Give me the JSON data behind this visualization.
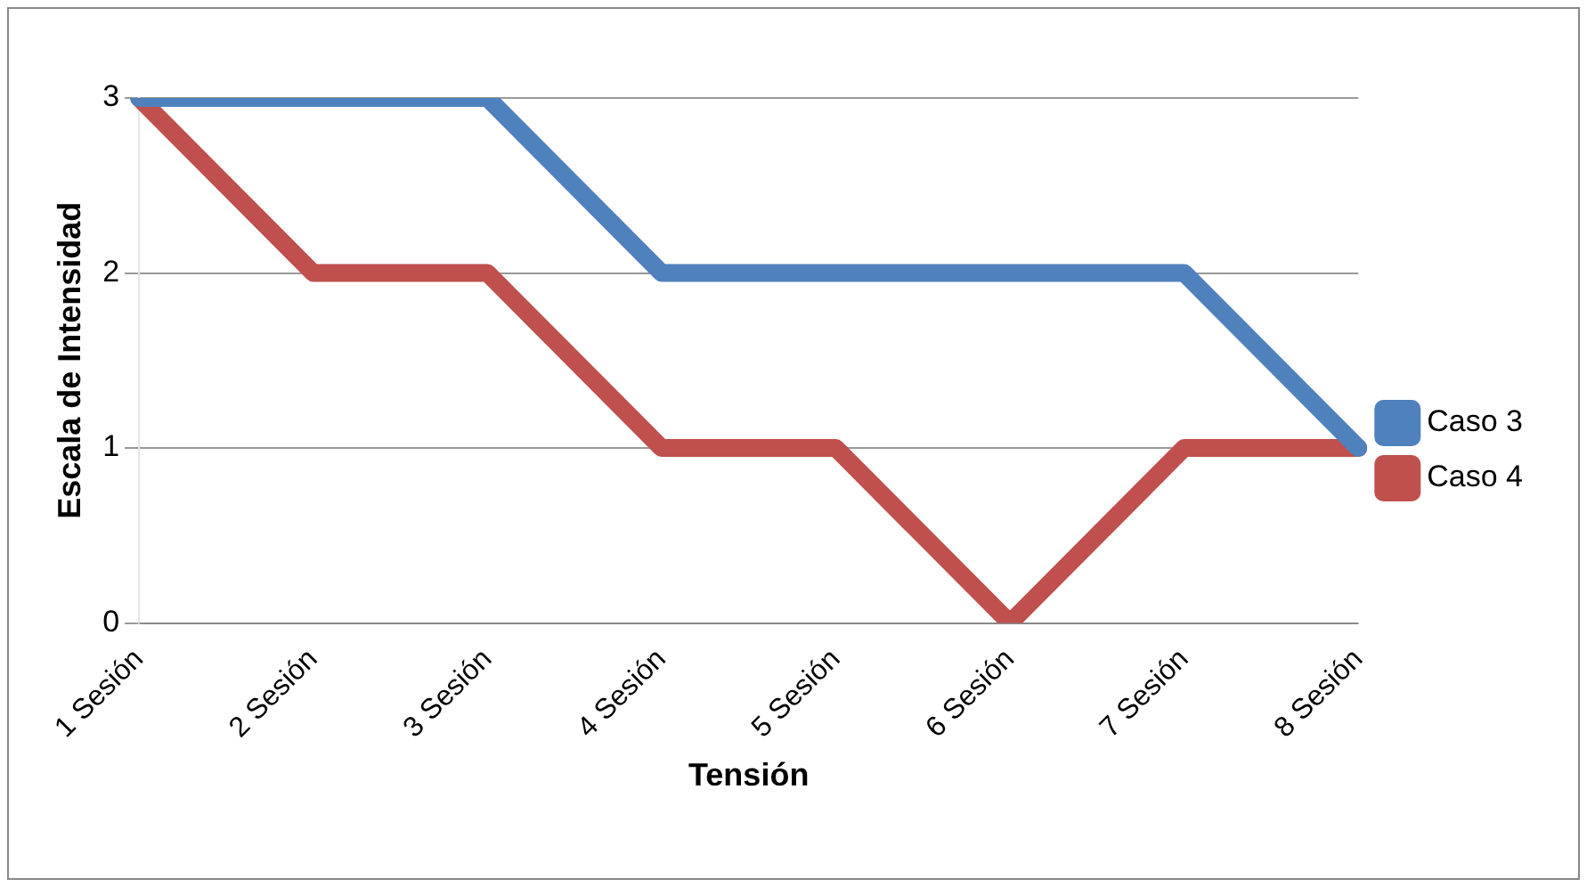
{
  "chart_data": {
    "type": "line",
    "xlabel": "Tensión",
    "ylabel": "Escala de Intensidad",
    "categories": [
      "1 Sesión",
      "2 Sesión",
      "3 Sesión",
      "4 Sesión",
      "5 Sesión",
      "6 Sesión",
      "7 Sesión",
      "8 Sesión"
    ],
    "series": [
      {
        "name": "Caso 3",
        "color": "#4f81bd",
        "values": [
          3,
          3,
          3,
          2,
          2,
          2,
          2,
          1
        ]
      },
      {
        "name": "Caso 4",
        "color": "#c0504d",
        "values": [
          3,
          2,
          2,
          1,
          1,
          0,
          1,
          1
        ]
      }
    ],
    "ylim": [
      0,
      3
    ],
    "yticks": [
      0,
      1,
      2,
      3
    ],
    "grid": "y",
    "legend": "right",
    "marker": "none"
  }
}
